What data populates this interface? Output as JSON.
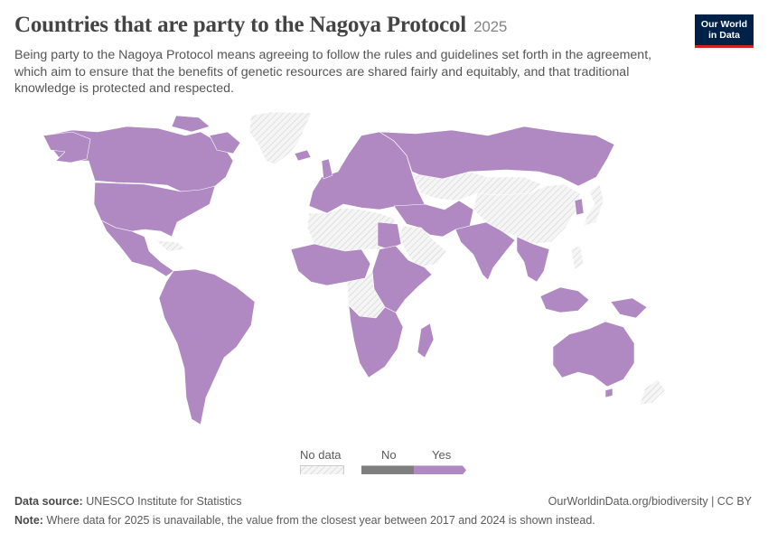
{
  "header": {
    "title": "Countries that are party to the Nagoya Protocol",
    "year": "2025",
    "subtitle": "Being party to the Nagoya Protocol means agreeing to follow the rules and guidelines set forth in the agreement, which aim to ensure that the benefits of genetic resources are shared fairly and equitably, and that traditional knowledge is protected and respected."
  },
  "logo": {
    "line1": "Our World",
    "line2": "in Data"
  },
  "legend": {
    "items": [
      {
        "label": "No data",
        "color": "#e8e8e8",
        "pattern": "hatched"
      },
      {
        "label": "No",
        "color": "#7f7f7f"
      },
      {
        "label": "Yes",
        "color": "#b088c2"
      }
    ]
  },
  "colors": {
    "yes": "#b088c2",
    "no": "#7f7f7f",
    "no_data": "#f2f2f2",
    "border": "#ffffff"
  },
  "footer": {
    "source_label": "Data source:",
    "source_text": "UNESCO Institute for Statistics",
    "url": "OurWorldinData.org/biodiversity | CC BY",
    "note_label": "Note:",
    "note_text": "Where data for 2025 is unavailable, the value from the closest year between 2017 and 2024 is shown instead."
  }
}
